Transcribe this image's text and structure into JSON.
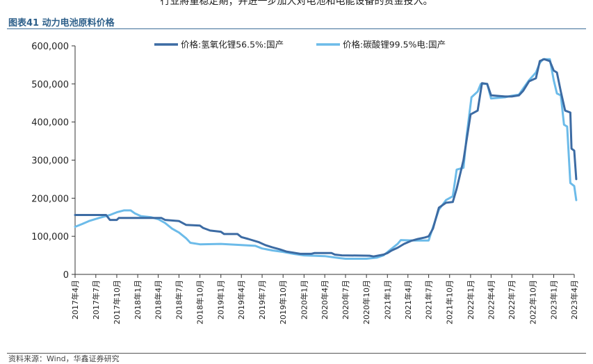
{
  "header": {
    "top_text": "行业將重稳定期；并进一步加大对电池和电能设备的资金投入。",
    "figure_title": "图表41 动力电池原料价格",
    "source_text": "资料来源：Wind，华鑫证券研究"
  },
  "chart_data": {
    "type": "line",
    "title": "",
    "xlabel": "",
    "ylabel": "",
    "ylim": [
      0,
      600000
    ],
    "yticks": [
      0,
      100000,
      200000,
      300000,
      400000,
      500000,
      600000
    ],
    "ytick_labels": [
      "0",
      "100,000",
      "200,000",
      "300,000",
      "400,000",
      "500,000",
      "600,000"
    ],
    "x_range": [
      "2017-04",
      "2023-04"
    ],
    "xtick_labels": [
      "2017年4月",
      "2017年7月",
      "2017年10月",
      "2018年1月",
      "2018年4月",
      "2018年7月",
      "2018年10月",
      "2019年1月",
      "2019年4月",
      "2019年7月",
      "2019年10月",
      "2020年1月",
      "2020年4月",
      "2020年7月",
      "2020年10月",
      "2021年1月",
      "2021年4月",
      "2021年7月",
      "2021年10月",
      "2022年1月",
      "2022年4月",
      "2022年7月",
      "2022年10月",
      "2023年1月",
      "2023年4月"
    ],
    "grid": false,
    "legend_position": "top",
    "series": [
      {
        "name": "价格:氢氧化锂56.5%:国产",
        "color": "#3c6ba3",
        "points": [
          [
            "2017-04-01",
            156000
          ],
          [
            "2017-08-15",
            156000
          ],
          [
            "2017-09-01",
            143000
          ],
          [
            "2017-10-01",
            143000
          ],
          [
            "2017-10-10",
            148000
          ],
          [
            "2018-01-01",
            148000
          ],
          [
            "2018-04-01",
            148000
          ],
          [
            "2018-04-15",
            148000
          ],
          [
            "2018-05-01",
            143000
          ],
          [
            "2018-07-01",
            140000
          ],
          [
            "2018-08-01",
            130000
          ],
          [
            "2018-10-01",
            128000
          ],
          [
            "2018-10-15",
            122000
          ],
          [
            "2018-11-15",
            115000
          ],
          [
            "2019-01-01",
            112000
          ],
          [
            "2019-01-15",
            106000
          ],
          [
            "2019-03-15",
            106000
          ],
          [
            "2019-04-01",
            98000
          ],
          [
            "2019-05-01",
            93000
          ],
          [
            "2019-06-15",
            85000
          ],
          [
            "2019-07-15",
            77000
          ],
          [
            "2019-08-15",
            71000
          ],
          [
            "2019-09-15",
            66000
          ],
          [
            "2019-10-15",
            60000
          ],
          [
            "2019-11-15",
            57000
          ],
          [
            "2019-12-15",
            54000
          ],
          [
            "2020-02-01",
            54000
          ],
          [
            "2020-02-15",
            56000
          ],
          [
            "2020-05-01",
            56000
          ],
          [
            "2020-05-15",
            52000
          ],
          [
            "2020-06-15",
            50000
          ],
          [
            "2020-10-15",
            49000
          ],
          [
            "2020-11-01",
            47000
          ],
          [
            "2020-12-15",
            52000
          ],
          [
            "2021-01-01",
            56000
          ],
          [
            "2021-01-20",
            63000
          ],
          [
            "2021-02-15",
            70000
          ],
          [
            "2021-03-15",
            80000
          ],
          [
            "2021-04-15",
            88000
          ],
          [
            "2021-05-15",
            93000
          ],
          [
            "2021-06-15",
            97000
          ],
          [
            "2021-07-01",
            100000
          ],
          [
            "2021-07-20",
            120000
          ],
          [
            "2021-08-15",
            175000
          ],
          [
            "2021-09-15",
            188000
          ],
          [
            "2021-10-15",
            190000
          ],
          [
            "2021-11-01",
            225000
          ],
          [
            "2021-12-01",
            300000
          ],
          [
            "2022-01-01",
            420000
          ],
          [
            "2022-02-01",
            430000
          ],
          [
            "2022-02-20",
            502000
          ],
          [
            "2022-03-15",
            500000
          ],
          [
            "2022-04-01",
            470000
          ],
          [
            "2022-06-01",
            467000
          ],
          [
            "2022-07-01",
            467000
          ],
          [
            "2022-08-01",
            470000
          ],
          [
            "2022-08-20",
            482000
          ],
          [
            "2022-09-15",
            507000
          ],
          [
            "2022-10-15",
            515000
          ],
          [
            "2022-11-01",
            560000
          ],
          [
            "2022-11-20",
            565000
          ],
          [
            "2022-12-15",
            560000
          ],
          [
            "2023-01-01",
            535000
          ],
          [
            "2023-01-15",
            530000
          ],
          [
            "2023-02-01",
            480000
          ],
          [
            "2023-02-20",
            430000
          ],
          [
            "2023-03-15",
            425000
          ],
          [
            "2023-03-20",
            330000
          ],
          [
            "2023-04-01",
            325000
          ],
          [
            "2023-04-10",
            250000
          ]
        ]
      },
      {
        "name": "价格:碳酸锂99.5%电:国产",
        "color": "#6cbbe9",
        "points": [
          [
            "2017-04-01",
            125000
          ],
          [
            "2017-05-01",
            132000
          ],
          [
            "2017-06-01",
            140000
          ],
          [
            "2017-07-15",
            148000
          ],
          [
            "2017-09-01",
            156000
          ],
          [
            "2017-10-01",
            163000
          ],
          [
            "2017-11-01",
            168000
          ],
          [
            "2017-12-01",
            168000
          ],
          [
            "2017-12-20",
            160000
          ],
          [
            "2018-01-15",
            153000
          ],
          [
            "2018-03-01",
            150000
          ],
          [
            "2018-04-01",
            145000
          ],
          [
            "2018-05-01",
            135000
          ],
          [
            "2018-06-01",
            120000
          ],
          [
            "2018-07-01",
            110000
          ],
          [
            "2018-08-01",
            95000
          ],
          [
            "2018-08-20",
            83000
          ],
          [
            "2018-10-01",
            79000
          ],
          [
            "2019-01-01",
            80000
          ],
          [
            "2019-04-01",
            77000
          ],
          [
            "2019-06-01",
            75000
          ],
          [
            "2019-07-01",
            68000
          ],
          [
            "2019-08-15",
            63000
          ],
          [
            "2019-10-01",
            59000
          ],
          [
            "2019-11-15",
            54000
          ],
          [
            "2020-01-01",
            50000
          ],
          [
            "2020-04-01",
            48000
          ],
          [
            "2020-06-01",
            43000
          ],
          [
            "2020-07-01",
            41000
          ],
          [
            "2020-10-01",
            41000
          ],
          [
            "2020-11-15",
            44000
          ],
          [
            "2020-12-15",
            50000
          ],
          [
            "2021-01-10",
            63000
          ],
          [
            "2021-02-15",
            80000
          ],
          [
            "2021-03-01",
            90000
          ],
          [
            "2021-05-01",
            89000
          ],
          [
            "2021-06-01",
            89000
          ],
          [
            "2021-07-01",
            89000
          ],
          [
            "2021-07-15",
            115000
          ],
          [
            "2021-08-15",
            170000
          ],
          [
            "2021-09-15",
            195000
          ],
          [
            "2021-10-15",
            205000
          ],
          [
            "2021-11-01",
            275000
          ],
          [
            "2021-12-01",
            280000
          ],
          [
            "2021-12-15",
            365000
          ],
          [
            "2022-01-05",
            465000
          ],
          [
            "2022-02-01",
            480000
          ],
          [
            "2022-02-15",
            500000
          ],
          [
            "2022-03-15",
            500000
          ],
          [
            "2022-04-01",
            462000
          ],
          [
            "2022-06-01",
            465000
          ],
          [
            "2022-07-01",
            469000
          ],
          [
            "2022-08-01",
            472000
          ],
          [
            "2022-08-20",
            488000
          ],
          [
            "2022-09-15",
            510000
          ],
          [
            "2022-10-15",
            530000
          ],
          [
            "2022-11-01",
            555000
          ],
          [
            "2022-11-15",
            565000
          ],
          [
            "2022-12-15",
            565000
          ],
          [
            "2023-01-01",
            510000
          ],
          [
            "2023-01-15",
            475000
          ],
          [
            "2023-02-01",
            470000
          ],
          [
            "2023-02-15",
            393000
          ],
          [
            "2023-03-01",
            388000
          ],
          [
            "2023-03-15",
            240000
          ],
          [
            "2023-04-01",
            232000
          ],
          [
            "2023-04-10",
            195000
          ]
        ]
      }
    ]
  }
}
